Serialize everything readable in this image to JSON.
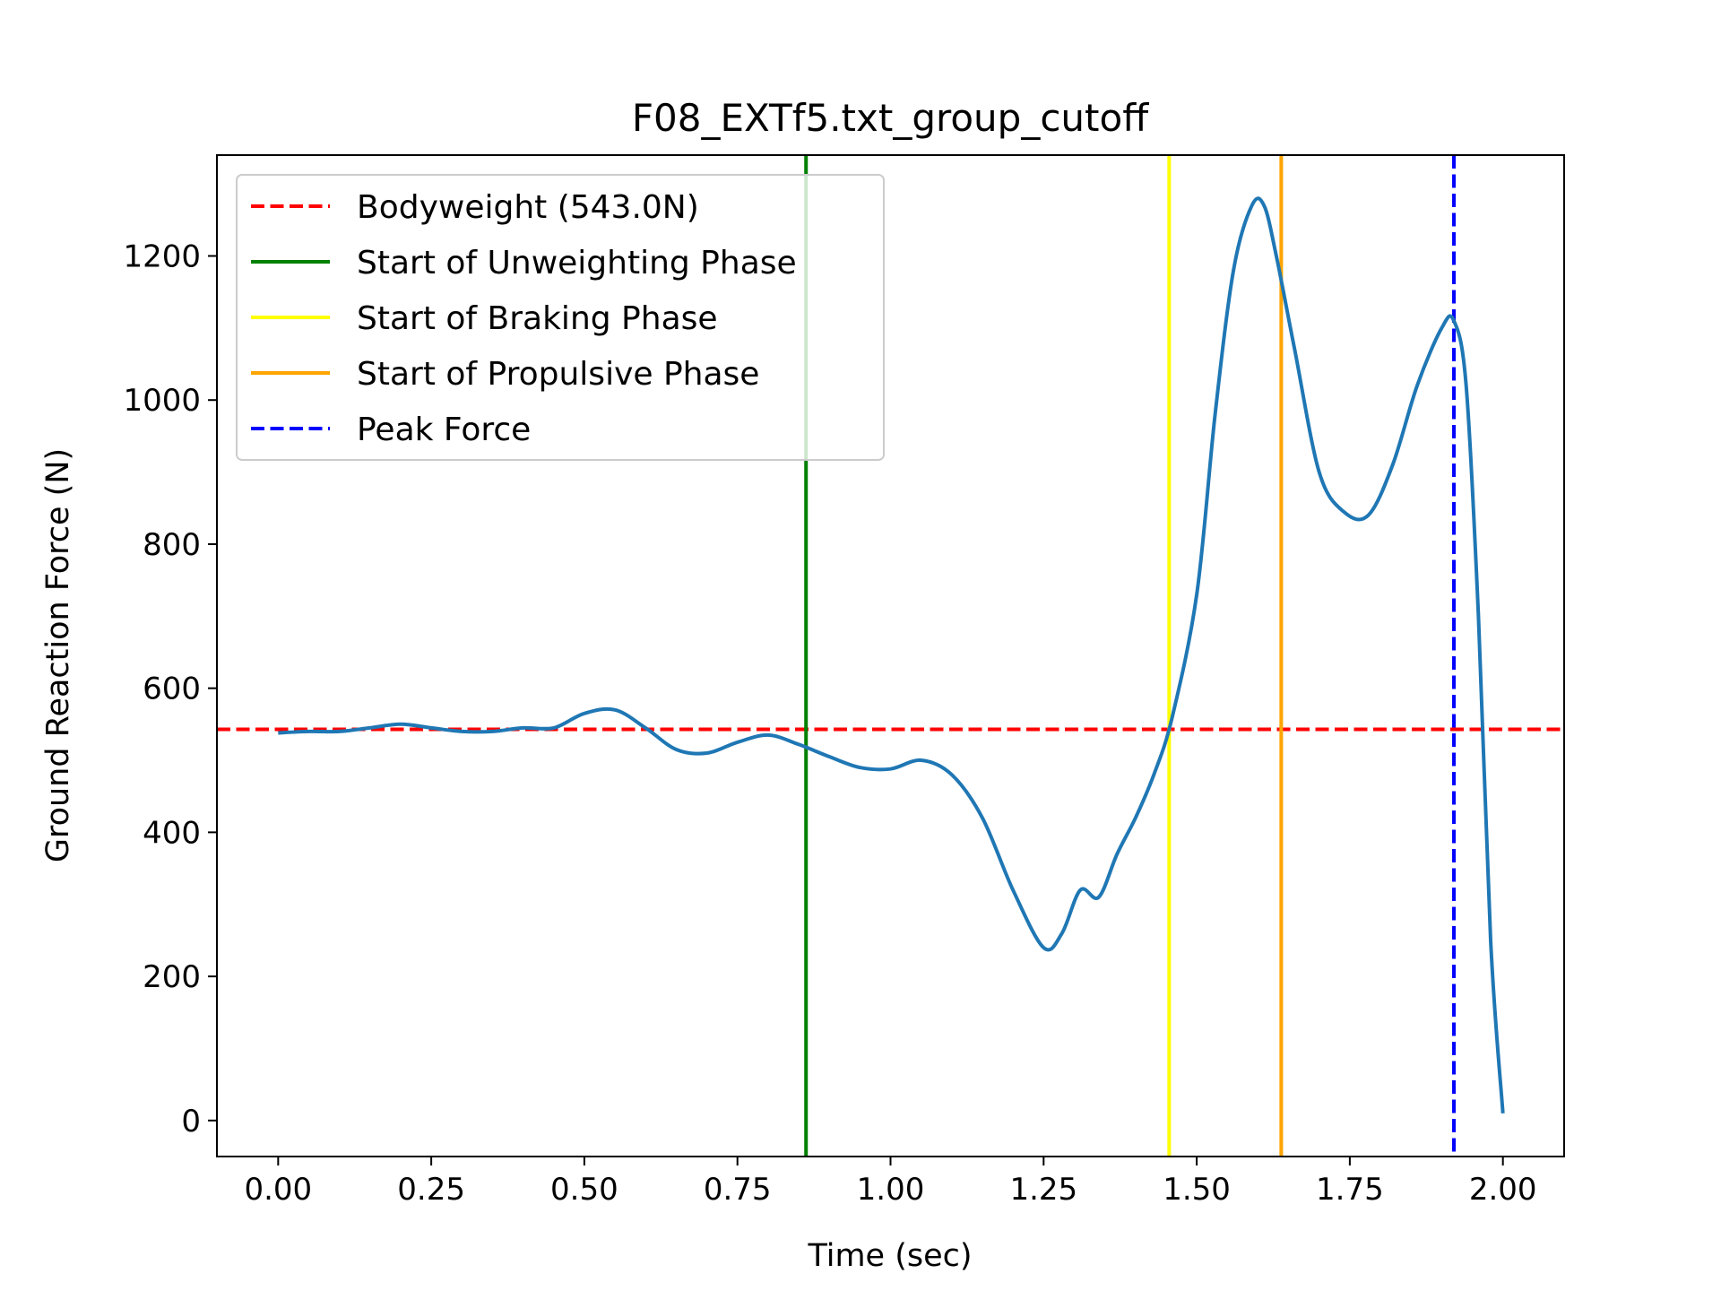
{
  "chart_data": {
    "type": "line",
    "title": "F08_EXTf5.txt_group_cutoff",
    "xlabel": "Time (sec)",
    "ylabel": "Ground Reaction Force (N)",
    "xlim": [
      -0.1,
      2.1
    ],
    "ylim": [
      -50,
      1340
    ],
    "xticks": [
      0.0,
      0.25,
      0.5,
      0.75,
      1.0,
      1.25,
      1.5,
      1.75,
      2.0
    ],
    "xtick_labels": [
      "0.00",
      "0.25",
      "0.50",
      "0.75",
      "1.00",
      "1.25",
      "1.50",
      "1.75",
      "2.00"
    ],
    "yticks": [
      0,
      200,
      400,
      600,
      800,
      1000,
      1200
    ],
    "ytick_labels": [
      "0",
      "200",
      "400",
      "600",
      "800",
      "1000",
      "1200"
    ],
    "grid": false,
    "legend_position": "top-left",
    "series": [
      {
        "type": "line",
        "color": "#1f77b4",
        "x": [
          0.0,
          0.05,
          0.1,
          0.15,
          0.2,
          0.25,
          0.3,
          0.35,
          0.4,
          0.45,
          0.5,
          0.55,
          0.6,
          0.65,
          0.7,
          0.75,
          0.8,
          0.85,
          0.9,
          0.95,
          1.0,
          1.05,
          1.1,
          1.15,
          1.2,
          1.25,
          1.28,
          1.31,
          1.34,
          1.37,
          1.4,
          1.43,
          1.46,
          1.5,
          1.53,
          1.56,
          1.59,
          1.61,
          1.63,
          1.66,
          1.7,
          1.74,
          1.78,
          1.82,
          1.86,
          1.9,
          1.92,
          1.94,
          1.96,
          1.98,
          2.0
        ],
        "y": [
          538,
          540,
          540,
          545,
          550,
          545,
          540,
          540,
          545,
          545,
          565,
          570,
          545,
          515,
          510,
          525,
          535,
          522,
          505,
          490,
          488,
          500,
          480,
          420,
          320,
          240,
          260,
          320,
          310,
          370,
          420,
          480,
          560,
          730,
          980,
          1180,
          1270,
          1270,
          1200,
          1070,
          900,
          845,
          840,
          910,
          1020,
          1100,
          1110,
          1020,
          700,
          250,
          10
        ]
      }
    ],
    "reference_lines": [
      {
        "orientation": "horizontal",
        "value": 543.0,
        "color": "#ff0000",
        "style": "dashed",
        "label": "Bodyweight (543.0N)"
      },
      {
        "orientation": "vertical",
        "value": 0.862,
        "color": "#008000",
        "style": "solid",
        "label": "Start of Unweighting Phase"
      },
      {
        "orientation": "vertical",
        "value": 1.455,
        "color": "#ffff00",
        "style": "solid",
        "label": "Start of Braking Phase"
      },
      {
        "orientation": "vertical",
        "value": 1.638,
        "color": "#ffa500",
        "style": "solid",
        "label": "Start of Propulsive Phase"
      },
      {
        "orientation": "vertical",
        "value": 1.92,
        "color": "#0000ff",
        "style": "dashed",
        "label": "Peak Force"
      }
    ]
  }
}
